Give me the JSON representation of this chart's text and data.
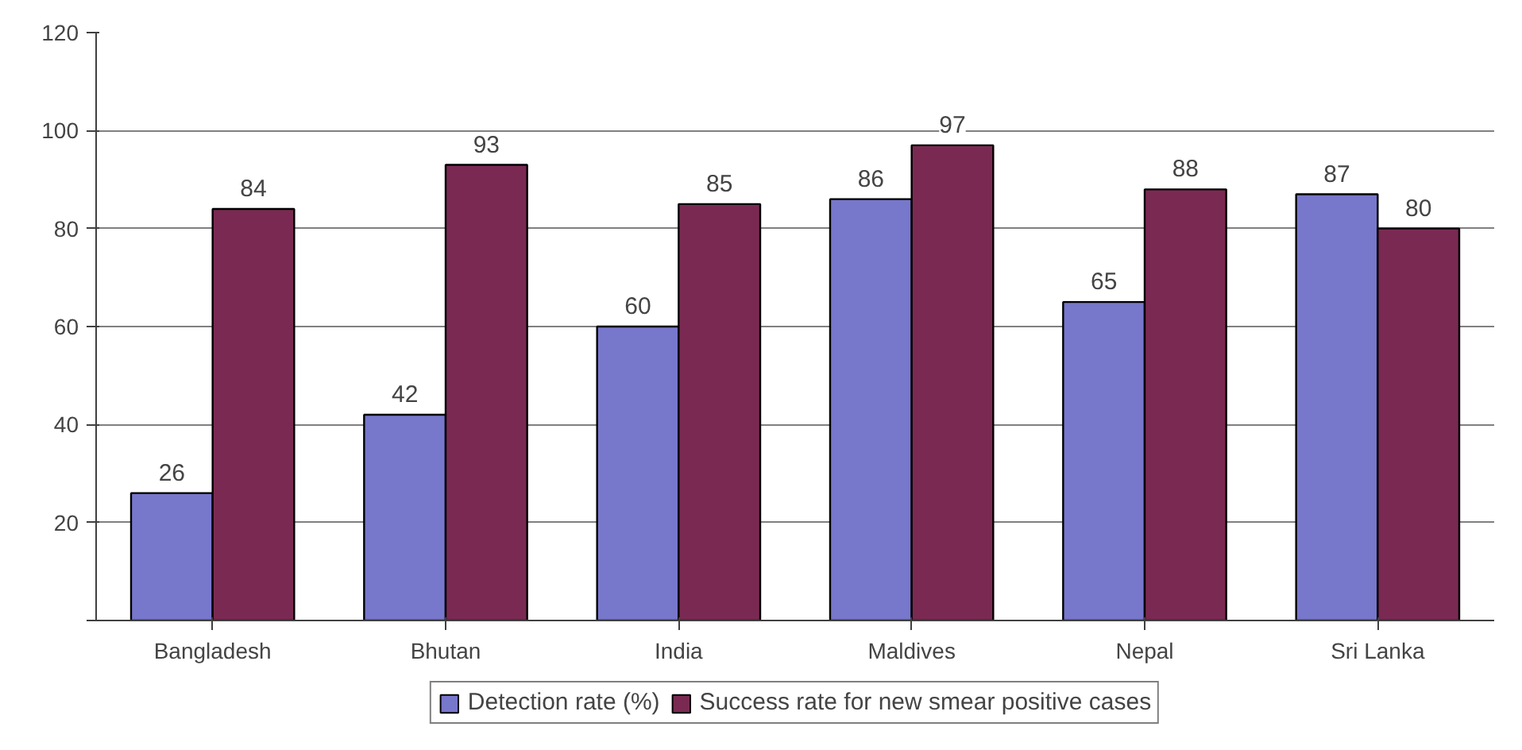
{
  "chart_data": {
    "type": "bar",
    "categories": [
      "Bangladesh",
      "Bhutan",
      "India",
      "Maldives",
      "Nepal",
      "Sri Lanka"
    ],
    "series": [
      {
        "name": "Detection rate (%)",
        "color": "#7777cc",
        "values": [
          26,
          42,
          60,
          86,
          65,
          87
        ]
      },
      {
        "name": "Success rate for new smear positive cases",
        "color": "#7a2a52",
        "values": [
          84,
          93,
          85,
          97,
          88,
          80
        ]
      }
    ],
    "ylim": [
      0,
      120
    ],
    "yticks": [
      {
        "value": 0,
        "label": null
      },
      20,
      40,
      60,
      80,
      100,
      120
    ],
    "grid": "y",
    "legend": "bottom",
    "data_labels": true
  }
}
